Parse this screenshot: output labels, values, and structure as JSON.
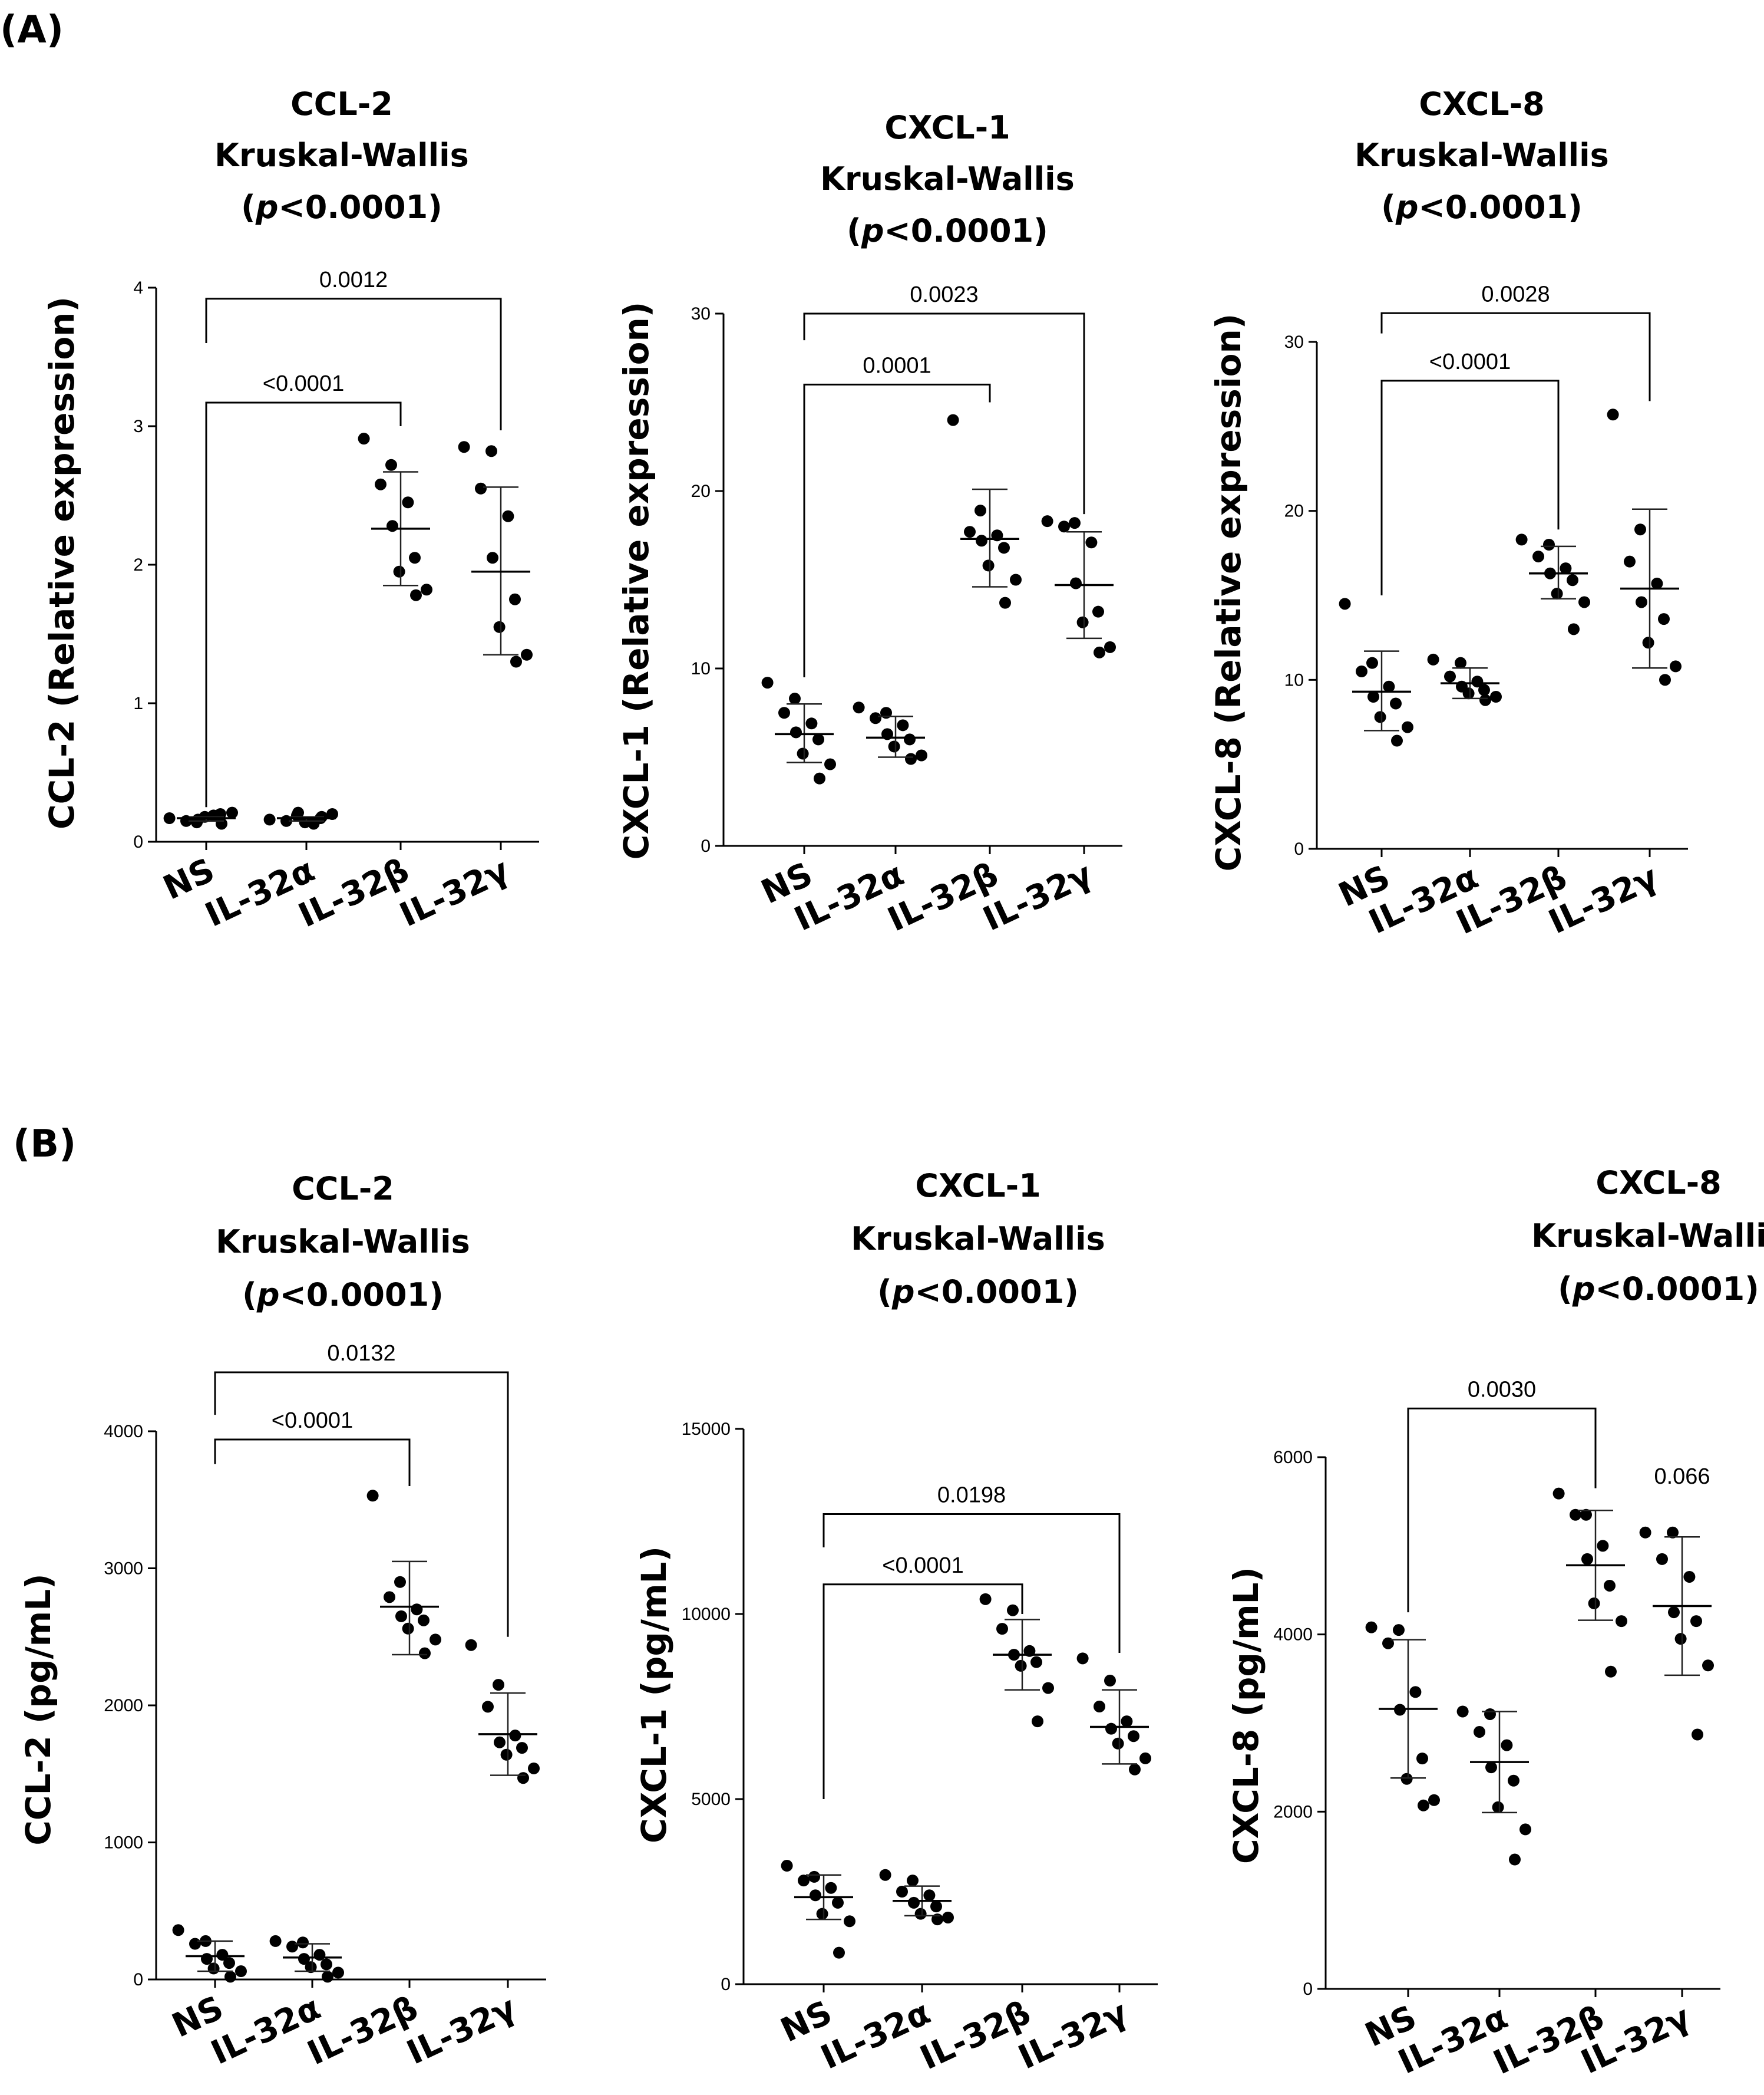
{
  "panel_labels": [
    "(A)",
    "(B)"
  ],
  "chart_data": [
    {
      "type": "scatter",
      "panel": "(A)",
      "title": [
        "CCL-2",
        "Kruskal-Wallis",
        "(p<0.0001)"
      ],
      "ylabel": "CCL-2 (Relative expression)",
      "ylim": [
        0,
        4
      ],
      "yticks": [
        "0",
        "1",
        "2",
        "3",
        "4"
      ],
      "ytick_values": [
        0,
        1,
        2,
        3,
        4
      ],
      "categories": [
        "NS",
        "IL-32α",
        "IL-32β",
        "IL-32γ"
      ],
      "points": [
        [
          0.17,
          0.14,
          0.15,
          0.19,
          0.16,
          0.2,
          0.18,
          0.21,
          0.13
        ],
        [
          0.16,
          0.19,
          0.15,
          0.13,
          0.21,
          0.17,
          0.14,
          0.2,
          0.18
        ],
        [
          2.91,
          2.72,
          2.58,
          2.45,
          2.28,
          2.05,
          1.95,
          1.82,
          1.78
        ],
        [
          2.85,
          2.82,
          2.55,
          2.35,
          2.05,
          1.75,
          1.55,
          1.35,
          1.3
        ]
      ],
      "means": [
        0.17,
        0.17,
        2.26,
        1.95
      ],
      "sd_upper": [
        0.18,
        0.18,
        2.67,
        2.56
      ],
      "sd_lower": [
        0.15,
        0.15,
        1.85,
        1.35
      ],
      "comparisons": [
        {
          "label": "0.0012",
          "from": 0,
          "to": 3,
          "y": 3.92,
          "bottom": [
            3.6,
            2.97
          ]
        },
        {
          "label": "<0.0001",
          "from": 0,
          "to": 2,
          "y": 3.17,
          "bottom": [
            0.25,
            3.0
          ]
        }
      ]
    },
    {
      "type": "scatter",
      "panel": "(A)",
      "title": [
        "CXCL-1",
        "Kruskal-Wallis",
        "(p<0.0001)"
      ],
      "ylabel": "CXCL-1 (Relative expression)",
      "ylim": [
        0,
        30
      ],
      "yticks": [
        "0",
        "10",
        "20",
        "30"
      ],
      "ytick_values": [
        0,
        10,
        20,
        30
      ],
      "categories": [
        "NS",
        "IL-32α",
        "IL-32β",
        "IL-32γ"
      ],
      "points": [
        [
          9.2,
          8.3,
          7.5,
          6.9,
          6.4,
          6.0,
          5.2,
          4.6,
          3.8
        ],
        [
          7.8,
          7.5,
          7.2,
          6.8,
          6.3,
          6.0,
          5.6,
          5.1,
          4.9
        ],
        [
          24.0,
          18.9,
          17.7,
          17.5,
          17.2,
          16.8,
          15.8,
          15.0,
          13.7
        ],
        [
          18.3,
          18.2,
          18.0,
          17.1,
          14.8,
          13.2,
          12.6,
          11.2,
          10.9
        ]
      ],
      "means": [
        6.3,
        6.1,
        17.3,
        14.7
      ],
      "sd_upper": [
        8.0,
        7.3,
        20.1,
        17.7
      ],
      "sd_lower": [
        4.7,
        5.0,
        14.6,
        11.7
      ],
      "comparisons": [
        {
          "label": "0.0023",
          "from": 0,
          "to": 3,
          "y": 30.0,
          "bottom": [
            28.5,
            18.7
          ]
        },
        {
          "label": "0.0001",
          "from": 0,
          "to": 2,
          "y": 26.0,
          "bottom": [
            9.5,
            25.0
          ]
        }
      ]
    },
    {
      "type": "scatter",
      "panel": "(A)",
      "title": [
        "CXCL-8",
        "Kruskal-Wallis",
        "(p<0.0001)"
      ],
      "ylabel": "CXCL-8 (Relative expression)",
      "ylim": [
        0,
        30
      ],
      "yticks": [
        "0",
        "10",
        "20",
        "30"
      ],
      "ytick_values": [
        0,
        10,
        20,
        30
      ],
      "categories": [
        "NS",
        "IL-32α",
        "IL-32β",
        "IL-32γ"
      ],
      "points": [
        [
          14.5,
          11.0,
          10.5,
          9.6,
          9.0,
          8.6,
          7.8,
          7.2,
          6.4
        ],
        [
          11.2,
          11.0,
          10.2,
          9.9,
          9.6,
          9.4,
          9.2,
          9.0,
          8.8
        ],
        [
          18.3,
          18.0,
          17.3,
          16.6,
          16.3,
          15.9,
          15.1,
          14.6,
          13.0
        ],
        [
          25.7,
          18.9,
          17.0,
          15.7,
          14.6,
          13.6,
          12.2,
          10.8,
          10.0
        ]
      ],
      "means": [
        9.3,
        9.8,
        16.3,
        15.4
      ],
      "sd_upper": [
        11.7,
        10.7,
        17.9,
        20.1
      ],
      "sd_lower": [
        7.0,
        8.9,
        14.8,
        10.7
      ],
      "comparisons": [
        {
          "label": "0.0028",
          "from": 0,
          "to": 3,
          "y": 31.7,
          "bottom": [
            30.5,
            26.5
          ]
        },
        {
          "label": "<0.0001",
          "from": 0,
          "to": 2,
          "y": 27.7,
          "bottom": [
            15.0,
            18.9
          ]
        }
      ]
    },
    {
      "type": "scatter",
      "panel": "(B)",
      "title": [
        "CCL-2",
        "Kruskal-Wallis",
        "(p<0.0001)"
      ],
      "ylabel": "CCL-2 (pg/mL)",
      "ylim": [
        0,
        4000
      ],
      "yticks": [
        "0",
        "1000",
        "2000",
        "3000",
        "4000"
      ],
      "ytick_values": [
        0,
        1000,
        2000,
        3000,
        4000
      ],
      "categories": [
        "NS",
        "IL-32α",
        "IL-32β",
        "IL-32γ"
      ],
      "points": [
        [
          360,
          280,
          260,
          180,
          150,
          120,
          80,
          60,
          20
        ],
        [
          280,
          270,
          240,
          180,
          150,
          110,
          90,
          50,
          20
        ],
        [
          3530,
          2900,
          2790,
          2700,
          2650,
          2620,
          2560,
          2480,
          2380
        ],
        [
          2440,
          2150,
          1990,
          1780,
          1730,
          1690,
          1640,
          1540,
          1470
        ]
      ],
      "means": [
        170,
        160,
        2720,
        1790
      ],
      "sd_upper": [
        280,
        260,
        3050,
        2090
      ],
      "sd_lower": [
        60,
        60,
        2370,
        1490
      ],
      "comparisons": [
        {
          "label": "0.0132",
          "from": 0,
          "to": 3,
          "y": 4430,
          "bottom": [
            4120,
            2500
          ]
        },
        {
          "label": "<0.0001",
          "from": 0,
          "to": 2,
          "y": 3940,
          "bottom": [
            3760,
            3600
          ]
        }
      ]
    },
    {
      "type": "scatter",
      "panel": "(B)",
      "title": [
        "CXCL-1",
        "Kruskal-Wallis",
        "(p<0.0001)"
      ],
      "ylabel": "CXCL-1 (pg/mL)",
      "ylim": [
        0,
        15000
      ],
      "yticks": [
        "0",
        "5000",
        "10000",
        "15000"
      ],
      "ytick_values": [
        0,
        5000,
        10000,
        15000
      ],
      "categories": [
        "NS",
        "IL-32α",
        "IL-32β",
        "IL-32γ"
      ],
      "points": [
        [
          3200,
          2900,
          2800,
          2600,
          2400,
          2200,
          1900,
          1700,
          850
        ],
        [
          2950,
          2800,
          2500,
          2400,
          2200,
          2100,
          1900,
          1800,
          1750
        ],
        [
          10400,
          10100,
          9600,
          9000,
          8900,
          8700,
          8600,
          8000,
          7100
        ],
        [
          8800,
          8200,
          7500,
          7100,
          6900,
          6700,
          6500,
          6100,
          5800
        ]
      ],
      "means": [
        2350,
        2250,
        8900,
        6950
      ],
      "sd_upper": [
        2950,
        2650,
        9850,
        7950
      ],
      "sd_lower": [
        1750,
        1850,
        7950,
        5950
      ],
      "comparisons": [
        {
          "label": "0.0198",
          "from": 0,
          "to": 3,
          "y": 12700,
          "bottom": [
            11800,
            8950
          ]
        },
        {
          "label": "<0.0001",
          "from": 0,
          "to": 2,
          "y": 10800,
          "bottom": [
            5000,
            10000
          ]
        }
      ]
    },
    {
      "type": "scatter",
      "panel": "(B)",
      "title": [
        "CXCL-8",
        "Kruskal-Wallis",
        "(p<0.0001)"
      ],
      "ylabel": "CXCL-8 (pg/mL)",
      "ylim": [
        0,
        6000
      ],
      "yticks": [
        "0",
        "2000",
        "4000",
        "6000"
      ],
      "ytick_values": [
        0,
        2000,
        4000,
        6000
      ],
      "categories": [
        "NS",
        "IL-32α",
        "IL-32β",
        "IL-32γ"
      ],
      "points": [
        [
          4080,
          4050,
          3900,
          3350,
          3150,
          2600,
          2370,
          2130,
          2070
        ],
        [
          3130,
          3100,
          2900,
          2750,
          2500,
          2350,
          2050,
          1800,
          1460
        ],
        [
          5590,
          5350,
          5350,
          5000,
          4850,
          4550,
          4350,
          4150,
          3580
        ],
        [
          5150,
          5150,
          4850,
          4650,
          4250,
          4150,
          3950,
          3650,
          2870
        ]
      ],
      "means": [
        3160,
        2560,
        4780,
        4320
      ],
      "sd_upper": [
        3940,
        3130,
        5400,
        5100
      ],
      "sd_lower": [
        2380,
        1990,
        4160,
        3540
      ],
      "comparisons": [
        {
          "label": "0.0030",
          "from": 0,
          "to": 2,
          "y": 6550,
          "bottom": [
            4250,
            5650
          ]
        }
      ],
      "annotations": [
        {
          "label": "0.066",
          "category": 3,
          "y": 5700
        }
      ]
    }
  ]
}
